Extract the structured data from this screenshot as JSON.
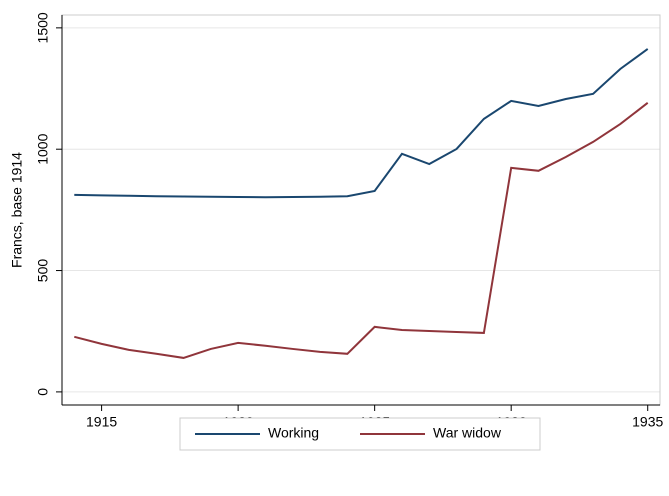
{
  "chart_data": {
    "type": "line",
    "y_label": "Francs, base 1914",
    "x": [
      1914,
      1915,
      1916,
      1917,
      1918,
      1919,
      1920,
      1921,
      1922,
      1923,
      1924,
      1925,
      1926,
      1927,
      1928,
      1929,
      1930,
      1931,
      1932,
      1933,
      1934,
      1935
    ],
    "series": [
      {
        "name": "Working",
        "color": "#1a476f",
        "values": [
          812,
          810,
          808,
          806,
          805,
          804,
          803,
          802,
          803,
          804,
          806,
          828,
          981,
          939,
          1001,
          1125,
          1199,
          1178,
          1207,
          1228,
          1331,
          1413
        ]
      },
      {
        "name": "War widow",
        "color": "#90353b",
        "values": [
          227,
          198,
          173,
          157,
          140,
          177,
          202,
          190,
          177,
          165,
          157,
          268,
          255,
          251,
          247,
          243,
          923,
          911,
          968,
          1030,
          1104,
          1191
        ]
      }
    ],
    "xlim": [
      1913.55,
      1935.45
    ],
    "xticks": [
      1915,
      1920,
      1925,
      1930,
      1935
    ],
    "ylim": [
      -54,
      1553
    ],
    "yticks": [
      0,
      500,
      1000,
      1500
    ],
    "grid": true,
    "legend": "bottom"
  }
}
